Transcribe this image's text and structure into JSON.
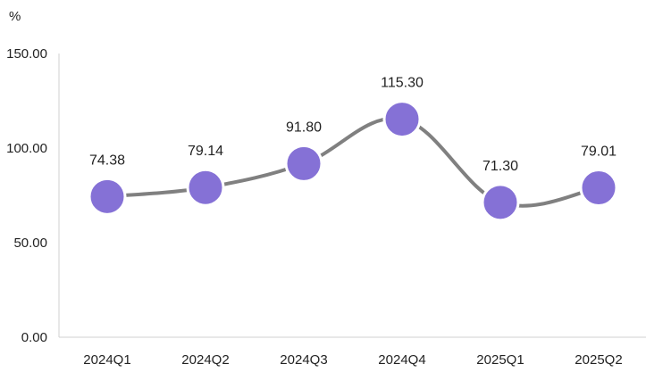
{
  "chart_data": {
    "type": "line",
    "title": "",
    "xlabel": "",
    "ylabel": "%",
    "categories": [
      "2024Q1",
      "2024Q2",
      "2024Q3",
      "2024Q4",
      "2025Q1",
      "2025Q2"
    ],
    "series": [
      {
        "values": [
          74.38,
          79.14,
          91.8,
          115.3,
          71.3,
          79.01
        ],
        "labels": [
          "74.38",
          "79.14",
          "91.80",
          "115.30",
          "71.30",
          "79.01"
        ]
      }
    ],
    "ylim": [
      0,
      150
    ],
    "yticks": [
      0,
      50,
      100,
      150
    ],
    "ytick_labels": [
      "0.00",
      "50.00",
      "100.00",
      "150.00"
    ],
    "grid": false,
    "smooth": true,
    "colors": {
      "line": "#808080",
      "marker": "#8571d6",
      "marker_border": "#ffffff",
      "axis": "#d0d0d0"
    }
  }
}
